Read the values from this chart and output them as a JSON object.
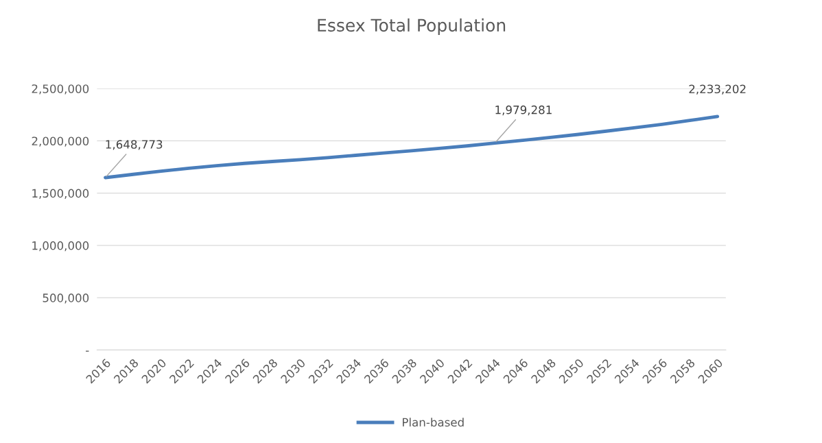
{
  "chart_data": {
    "type": "line",
    "title": "Essex Total Population",
    "categories": [
      "2016",
      "2018",
      "2020",
      "2022",
      "2024",
      "2026",
      "2028",
      "2030",
      "2032",
      "2034",
      "2036",
      "2038",
      "2040",
      "2042",
      "2044",
      "2046",
      "2048",
      "2050",
      "2052",
      "2054",
      "2056",
      "2058",
      "2060"
    ],
    "series": [
      {
        "name": "Plan-based",
        "color": "#4a7ebb",
        "values": [
          1648773,
          1680000,
          1710000,
          1738000,
          1763000,
          1785000,
          1803000,
          1820000,
          1840000,
          1862000,
          1884000,
          1905000,
          1928000,
          1952000,
          1979281,
          2005000,
          2033000,
          2062000,
          2093000,
          2125000,
          2158000,
          2195000,
          2233202
        ],
        "value_labels": [
          "1,648,773",
          null,
          null,
          null,
          null,
          null,
          null,
          null,
          null,
          null,
          null,
          null,
          null,
          null,
          "1,979,281",
          null,
          null,
          null,
          null,
          null,
          null,
          null,
          "2,233,202"
        ]
      }
    ],
    "ylim": [
      0,
      2500000
    ],
    "yticks": [
      {
        "value": 0,
        "label": "-"
      },
      {
        "value": 500000,
        "label": "500,000"
      },
      {
        "value": 1000000,
        "label": "1,000,000"
      },
      {
        "value": 1500000,
        "label": "1,500,000"
      },
      {
        "value": 2000000,
        "label": "2,000,000"
      },
      {
        "value": 2500000,
        "label": "2,500,000"
      }
    ],
    "grid": "y",
    "legend": "bottom",
    "marker": "none",
    "line_style": "solid"
  }
}
